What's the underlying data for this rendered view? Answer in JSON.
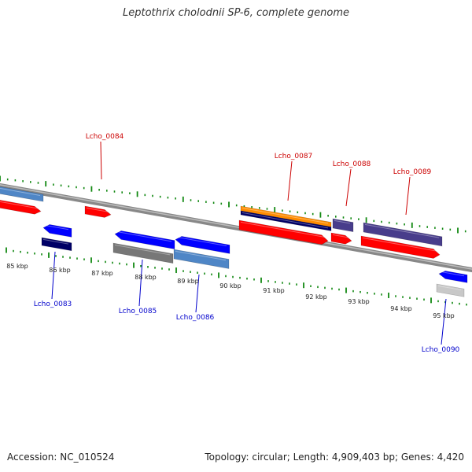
{
  "header": {
    "title": "Leptothrix cholodnii SP-6, complete genome"
  },
  "footer": {
    "accession": "Accession: NC_010524",
    "summary": "Topology: circular; Length: 4,909,403 bp; Genes: 4,420"
  },
  "colors": {
    "red": "#ff0000",
    "blue": "#0000ff",
    "steelblue": "#4f86c6",
    "navy": "#000066",
    "slate": "#483d8b",
    "orange": "#ff8c00",
    "gray": "#777777",
    "lightgray": "#c8c8c8",
    "backbone": "#888888",
    "tick": "#118811",
    "label_top": "#cc0000",
    "label_bottom": "#0000cc"
  },
  "kbp_labels": [
    "85 kbp",
    "86 kbp",
    "87 kbp",
    "88 kbp",
    "89 kbp",
    "90 kbp",
    "91 kbp",
    "92 kbp",
    "93 kbp",
    "94 kbp",
    "95 kbp"
  ],
  "gene_labels_top": [
    "Lcho_0084",
    "Lcho_0087",
    "Lcho_0088",
    "Lcho_0089"
  ],
  "gene_labels_bottom": [
    "Lcho_0083",
    "Lcho_0085",
    "Lcho_0086",
    "Lcho_0090"
  ]
}
